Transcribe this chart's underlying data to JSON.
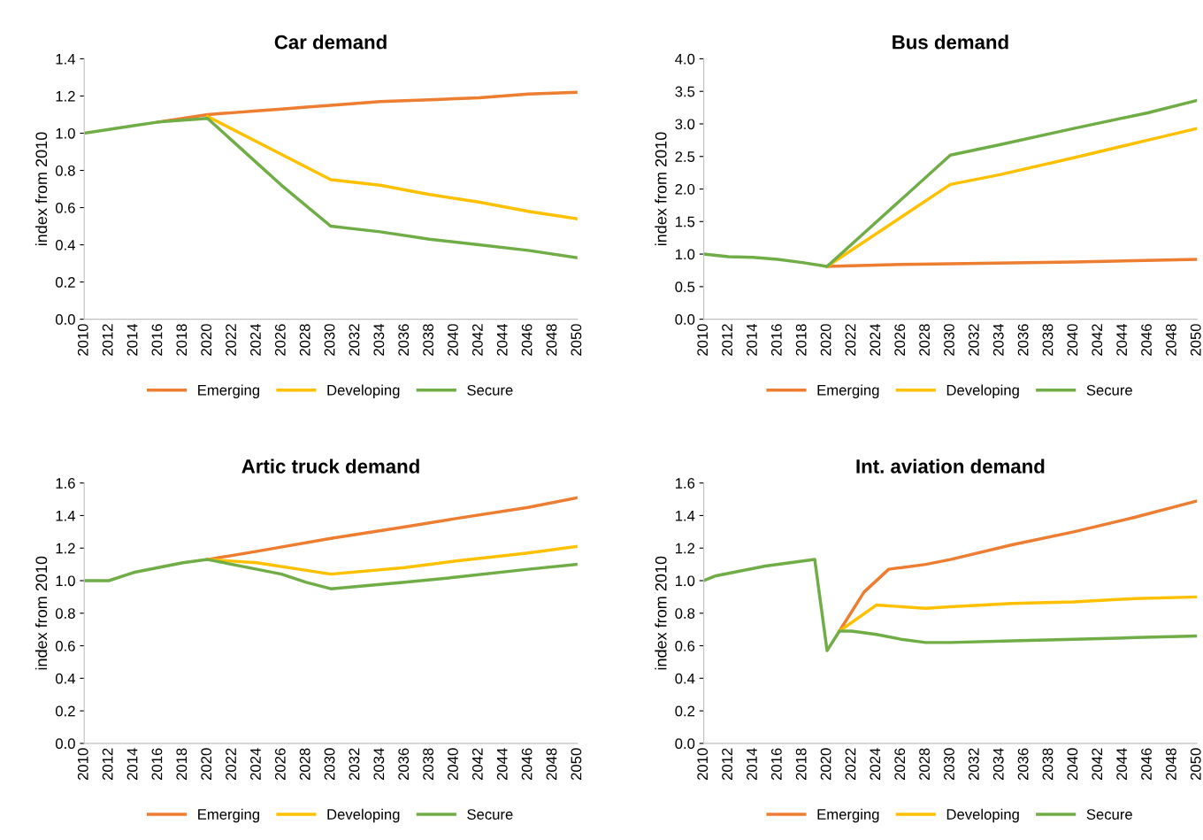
{
  "chart_data": [
    {
      "type": "line",
      "title": "Car demand",
      "ylabel": "index from 2010",
      "xlim": [
        2010,
        2050
      ],
      "xticks": [
        2010,
        2012,
        2014,
        2016,
        2018,
        2020,
        2022,
        2024,
        2026,
        2028,
        2030,
        2032,
        2034,
        2036,
        2038,
        2040,
        2042,
        2044,
        2046,
        2048,
        2050
      ],
      "ylim": [
        0,
        1.4
      ],
      "yticks": [
        {
          "value": 0,
          "label": "0.0"
        },
        {
          "value": 0.2,
          "label": "0.2"
        },
        {
          "value": 0.4,
          "label": "0.4"
        },
        {
          "value": 0.6,
          "label": "0.6"
        },
        {
          "value": 0.8,
          "label": "0.8"
        },
        {
          "value": 1.0,
          "label": "1.0"
        },
        {
          "value": 1.2,
          "label": "1.2"
        },
        {
          "value": 1.4,
          "label": "1.4"
        }
      ],
      "grid": false,
      "legend": "bottom",
      "marker": "none",
      "line_style": "solid",
      "series": [
        {
          "name": "Emerging",
          "color": "#ed7d31",
          "x": [
            2016,
            2018,
            2020,
            2022,
            2024,
            2026,
            2028,
            2030,
            2034,
            2038,
            2042,
            2046,
            2050
          ],
          "values": [
            1.06,
            1.08,
            1.1,
            1.11,
            1.12,
            1.13,
            1.14,
            1.15,
            1.17,
            1.18,
            1.19,
            1.21,
            1.22
          ]
        },
        {
          "name": "Developing",
          "color": "#ffc000",
          "x": [
            2020,
            2030,
            2034,
            2038,
            2042,
            2046,
            2050
          ],
          "values": [
            1.09,
            0.75,
            0.72,
            0.67,
            0.63,
            0.58,
            0.54
          ]
        },
        {
          "name": "Secure",
          "color": "#70ad47",
          "x": [
            2010,
            2012,
            2014,
            2016,
            2018,
            2020,
            2022,
            2024,
            2026,
            2030,
            2034,
            2038,
            2042,
            2046,
            2050
          ],
          "values": [
            1.0,
            1.02,
            1.04,
            1.06,
            1.07,
            1.08,
            0.96,
            0.84,
            0.72,
            0.5,
            0.47,
            0.43,
            0.4,
            0.37,
            0.33
          ]
        }
      ]
    },
    {
      "type": "line",
      "title": "Bus demand",
      "ylabel": "index from 2010",
      "xlim": [
        2010,
        2050
      ],
      "xticks": [
        2010,
        2012,
        2014,
        2016,
        2018,
        2020,
        2022,
        2024,
        2026,
        2028,
        2030,
        2032,
        2034,
        2036,
        2038,
        2040,
        2042,
        2044,
        2046,
        2048,
        2050
      ],
      "ylim": [
        0,
        4.0
      ],
      "yticks": [
        {
          "value": 0,
          "label": "0.0"
        },
        {
          "value": 0.5,
          "label": "0.5"
        },
        {
          "value": 1.0,
          "label": "1.0"
        },
        {
          "value": 1.5,
          "label": "1.5"
        },
        {
          "value": 2.0,
          "label": "2.0"
        },
        {
          "value": 2.5,
          "label": "2.5"
        },
        {
          "value": 3.0,
          "label": "3.0"
        },
        {
          "value": 3.5,
          "label": "3.5"
        },
        {
          "value": 4.0,
          "label": "4.0"
        }
      ],
      "grid": false,
      "legend": "bottom",
      "marker": "none",
      "line_style": "solid",
      "series": [
        {
          "name": "Emerging",
          "color": "#ed7d31",
          "x": [
            2020,
            2022,
            2026,
            2030,
            2040,
            2050
          ],
          "values": [
            0.81,
            0.82,
            0.84,
            0.85,
            0.88,
            0.92
          ]
        },
        {
          "name": "Developing",
          "color": "#ffc000",
          "x": [
            2020,
            2030,
            2034,
            2040,
            2046,
            2050
          ],
          "values": [
            0.81,
            2.07,
            2.22,
            2.48,
            2.75,
            2.93
          ]
        },
        {
          "name": "Secure",
          "color": "#70ad47",
          "x": [
            2010,
            2012,
            2014,
            2016,
            2018,
            2020,
            2030,
            2034,
            2040,
            2046,
            2050
          ],
          "values": [
            1.0,
            0.96,
            0.95,
            0.92,
            0.87,
            0.81,
            2.52,
            2.68,
            2.93,
            3.17,
            3.36
          ]
        }
      ]
    },
    {
      "type": "line",
      "title": "Artic truck demand",
      "ylabel": "index from 2010",
      "xlim": [
        2010,
        2050
      ],
      "xticks": [
        2010,
        2012,
        2014,
        2016,
        2018,
        2020,
        2022,
        2024,
        2026,
        2028,
        2030,
        2032,
        2034,
        2036,
        2038,
        2040,
        2042,
        2044,
        2046,
        2048,
        2050
      ],
      "ylim": [
        0,
        1.6
      ],
      "yticks": [
        {
          "value": 0,
          "label": "0.0"
        },
        {
          "value": 0.2,
          "label": "0.2"
        },
        {
          "value": 0.4,
          "label": "0.4"
        },
        {
          "value": 0.6,
          "label": "0.6"
        },
        {
          "value": 0.8,
          "label": "0.8"
        },
        {
          "value": 1.0,
          "label": "1.0"
        },
        {
          "value": 1.2,
          "label": "1.2"
        },
        {
          "value": 1.4,
          "label": "1.4"
        },
        {
          "value": 1.6,
          "label": "1.6"
        }
      ],
      "grid": false,
      "legend": "bottom",
      "marker": "none",
      "line_style": "solid",
      "series": [
        {
          "name": "Emerging",
          "color": "#ed7d31",
          "x": [
            2020,
            2024,
            2030,
            2036,
            2040,
            2046,
            2050
          ],
          "values": [
            1.13,
            1.18,
            1.26,
            1.33,
            1.38,
            1.45,
            1.51
          ]
        },
        {
          "name": "Developing",
          "color": "#ffc000",
          "x": [
            2020,
            2024,
            2030,
            2036,
            2040,
            2046,
            2050
          ],
          "values": [
            1.13,
            1.11,
            1.04,
            1.08,
            1.12,
            1.17,
            1.21
          ]
        },
        {
          "name": "Secure",
          "color": "#70ad47",
          "x": [
            2010,
            2012,
            2014,
            2016,
            2018,
            2020,
            2024,
            2026,
            2028,
            2030,
            2036,
            2040,
            2046,
            2050
          ],
          "values": [
            1.0,
            1.0,
            1.05,
            1.08,
            1.11,
            1.13,
            1.07,
            1.04,
            0.99,
            0.95,
            0.99,
            1.02,
            1.07,
            1.1
          ]
        }
      ]
    },
    {
      "type": "line",
      "title": "Int. aviation demand",
      "ylabel": "index from 2010",
      "xlim": [
        2010,
        2050
      ],
      "xticks": [
        2010,
        2012,
        2014,
        2016,
        2018,
        2020,
        2022,
        2024,
        2026,
        2028,
        2030,
        2032,
        2034,
        2036,
        2038,
        2040,
        2042,
        2044,
        2046,
        2048,
        2050
      ],
      "ylim": [
        0,
        1.6
      ],
      "yticks": [
        {
          "value": 0,
          "label": "0.0"
        },
        {
          "value": 0.2,
          "label": "0.2"
        },
        {
          "value": 0.4,
          "label": "0.4"
        },
        {
          "value": 0.6,
          "label": "0.6"
        },
        {
          "value": 0.8,
          "label": "0.8"
        },
        {
          "value": 1.0,
          "label": "1.0"
        },
        {
          "value": 1.2,
          "label": "1.2"
        },
        {
          "value": 1.4,
          "label": "1.4"
        },
        {
          "value": 1.6,
          "label": "1.6"
        }
      ],
      "grid": false,
      "legend": "bottom",
      "marker": "none",
      "line_style": "solid",
      "series": [
        {
          "name": "Emerging",
          "color": "#ed7d31",
          "x": [
            2021,
            2023,
            2025,
            2028,
            2030,
            2035,
            2040,
            2045,
            2050
          ],
          "values": [
            0.69,
            0.93,
            1.07,
            1.1,
            1.13,
            1.22,
            1.3,
            1.39,
            1.49
          ]
        },
        {
          "name": "Developing",
          "color": "#ffc000",
          "x": [
            2021,
            2024,
            2028,
            2030,
            2035,
            2040,
            2045,
            2050
          ],
          "values": [
            0.69,
            0.85,
            0.83,
            0.84,
            0.86,
            0.87,
            0.89,
            0.9
          ]
        },
        {
          "name": "Secure",
          "color": "#70ad47",
          "x": [
            2010,
            2011,
            2013,
            2015,
            2017,
            2019,
            2020,
            2021,
            2022,
            2024,
            2026,
            2028,
            2030,
            2035,
            2040,
            2045,
            2050
          ],
          "values": [
            1.0,
            1.03,
            1.06,
            1.09,
            1.11,
            1.13,
            0.57,
            0.69,
            0.69,
            0.67,
            0.64,
            0.62,
            0.62,
            0.63,
            0.64,
            0.65,
            0.66
          ]
        }
      ]
    }
  ]
}
